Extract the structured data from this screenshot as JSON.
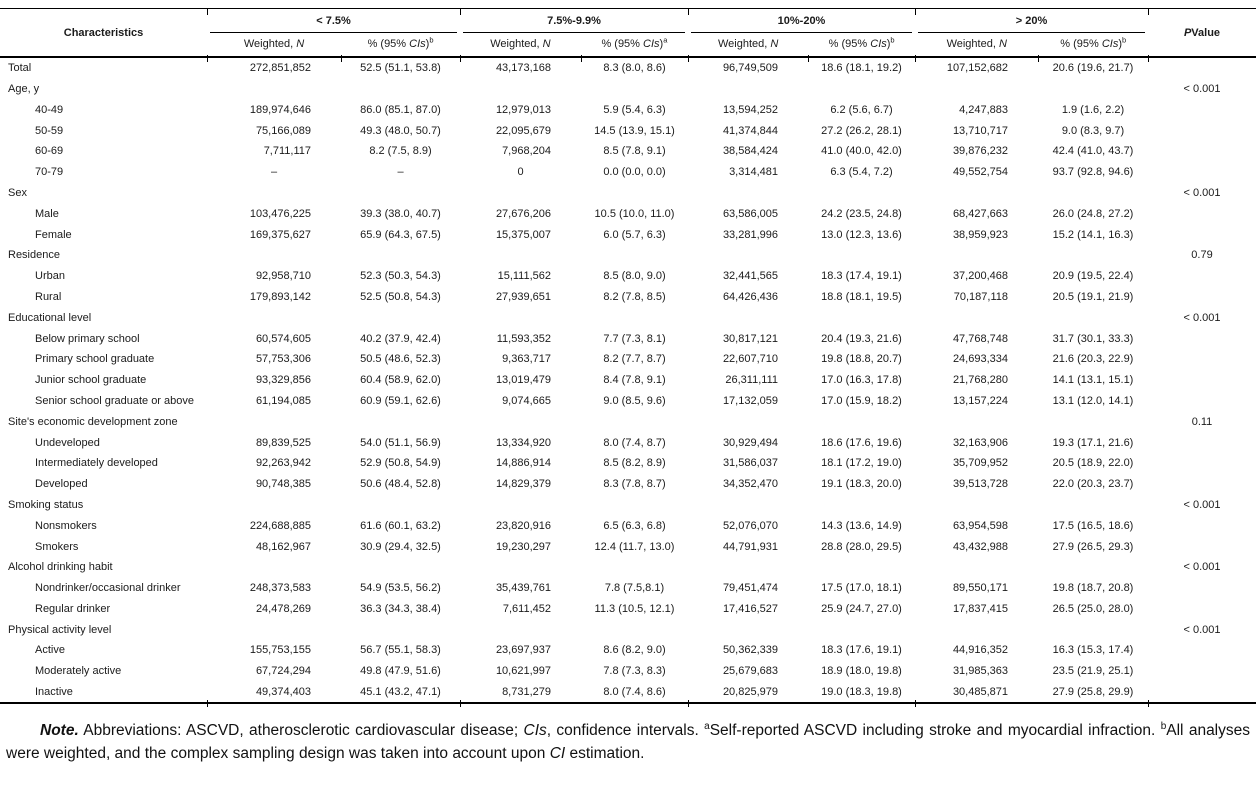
{
  "table": {
    "header": {
      "characteristics": "Characteristics",
      "p_italic": "P",
      "p_rest": " Value",
      "weighted_prefix": "Weighted, ",
      "weighted_n": "N",
      "pct_prefix": "% (95% ",
      "pct_cis": "CIs",
      "pct_close": ")",
      "groups": [
        {
          "range": "< 7.5%",
          "sup": "b"
        },
        {
          "range": "7.5%-9.9%",
          "sup": "a"
        },
        {
          "range": "10%-20%",
          "sup": "b"
        },
        {
          "range": "> 20%",
          "sup": "b"
        }
      ]
    },
    "rows": [
      {
        "label": "Total",
        "group": false,
        "indent": false,
        "cells": [
          "272,851,852",
          "52.5 (51.1, 53.8)",
          "43,173,168",
          "8.3 (8.0, 8.6)",
          "96,749,509",
          "18.6 (18.1, 19.2)",
          "107,152,682",
          "20.6 (19.6, 21.7)"
        ],
        "p": ""
      },
      {
        "label": "Age, y",
        "group": true,
        "indent": false,
        "cells": [],
        "p": "< 0.001"
      },
      {
        "label": "40-49",
        "group": false,
        "indent": true,
        "cells": [
          "189,974,646",
          "86.0 (85.1, 87.0)",
          "12,979,013",
          "5.9 (5.4, 6.3)",
          "13,594,252",
          "6.2 (5.6, 6.7)",
          "4,247,883",
          "1.9 (1.6, 2.2)"
        ],
        "p": ""
      },
      {
        "label": "50-59",
        "group": false,
        "indent": true,
        "cells": [
          "75,166,089",
          "49.3 (48.0, 50.7)",
          "22,095,679",
          "14.5 (13.9, 15.1)",
          "41,374,844",
          "27.2 (26.2, 28.1)",
          "13,710,717",
          "9.0 (8.3, 9.7)"
        ],
        "p": ""
      },
      {
        "label": "60-69",
        "group": false,
        "indent": true,
        "cells": [
          "7,711,117",
          "8.2 (7.5, 8.9)",
          "7,968,204",
          "8.5 (7.8, 9.1)",
          "38,584,424",
          "41.0 (40.0, 42.0)",
          "39,876,232",
          "42.4 (41.0, 43.7)"
        ],
        "p": ""
      },
      {
        "label": "70-79",
        "group": false,
        "indent": true,
        "cells": [
          "–",
          "–",
          "0",
          "0.0 (0.0, 0.0)",
          "3,314,481",
          "6.3 (5.4, 7.2)",
          "49,552,754",
          "93.7 (92.8, 94.6)"
        ],
        "p": ""
      },
      {
        "label": "Sex",
        "group": true,
        "indent": false,
        "cells": [],
        "p": "< 0.001"
      },
      {
        "label": "Male",
        "group": false,
        "indent": true,
        "cells": [
          "103,476,225",
          "39.3 (38.0, 40.7)",
          "27,676,206",
          "10.5 (10.0, 11.0)",
          "63,586,005",
          "24.2 (23.5, 24.8)",
          "68,427,663",
          "26.0 (24.8, 27.2)"
        ],
        "p": ""
      },
      {
        "label": "Female",
        "group": false,
        "indent": true,
        "cells": [
          "169,375,627",
          "65.9 (64.3, 67.5)",
          "15,375,007",
          "6.0 (5.7, 6.3)",
          "33,281,996",
          "13.0 (12.3, 13.6)",
          "38,959,923",
          "15.2 (14.1, 16.3)"
        ],
        "p": ""
      },
      {
        "label": "Residence",
        "group": true,
        "indent": false,
        "cells": [],
        "p": "0.79"
      },
      {
        "label": "Urban",
        "group": false,
        "indent": true,
        "cells": [
          "92,958,710",
          "52.3 (50.3, 54.3)",
          "15,111,562",
          "8.5 (8.0, 9.0)",
          "32,441,565",
          "18.3 (17.4, 19.1)",
          "37,200,468",
          "20.9 (19.5, 22.4)"
        ],
        "p": ""
      },
      {
        "label": "Rural",
        "group": false,
        "indent": true,
        "cells": [
          "179,893,142",
          "52.5 (50.8, 54.3)",
          "27,939,651",
          "8.2 (7.8, 8.5)",
          "64,426,436",
          "18.8 (18.1, 19.5)",
          "70,187,118",
          "20.5 (19.1, 21.9)"
        ],
        "p": ""
      },
      {
        "label": "Educational level",
        "group": true,
        "indent": false,
        "cells": [],
        "p": "< 0.001"
      },
      {
        "label": "Below primary school",
        "group": false,
        "indent": true,
        "cells": [
          "60,574,605",
          "40.2 (37.9, 42.4)",
          "11,593,352",
          "7.7 (7.3, 8.1)",
          "30,817,121",
          "20.4 (19.3, 21.6)",
          "47,768,748",
          "31.7 (30.1, 33.3)"
        ],
        "p": ""
      },
      {
        "label": "Primary school graduate",
        "group": false,
        "indent": true,
        "cells": [
          "57,753,306",
          "50.5 (48.6, 52.3)",
          "9,363,717",
          "8.2 (7.7, 8.7)",
          "22,607,710",
          "19.8 (18.8, 20.7)",
          "24,693,334",
          "21.6 (20.3, 22.9)"
        ],
        "p": ""
      },
      {
        "label": "Junior school graduate",
        "group": false,
        "indent": true,
        "cells": [
          "93,329,856",
          "60.4 (58.9, 62.0)",
          "13,019,479",
          "8.4 (7.8, 9.1)",
          "26,311,111",
          "17.0 (16.3, 17.8)",
          "21,768,280",
          "14.1 (13.1, 15.1)"
        ],
        "p": ""
      },
      {
        "label": "Senior school graduate or above",
        "group": false,
        "indent": true,
        "cells": [
          "61,194,085",
          "60.9 (59.1, 62.6)",
          "9,074,665",
          "9.0 (8.5, 9.6)",
          "17,132,059",
          "17.0 (15.9, 18.2)",
          "13,157,224",
          "13.1 (12.0, 14.1)"
        ],
        "p": ""
      },
      {
        "label": "Site's economic development zone",
        "group": true,
        "indent": false,
        "cells": [],
        "p": "0.11"
      },
      {
        "label": "Undeveloped",
        "group": false,
        "indent": true,
        "cells": [
          "89,839,525",
          "54.0 (51.1, 56.9)",
          "13,334,920",
          "8.0 (7.4, 8.7)",
          "30,929,494",
          "18.6 (17.6, 19.6)",
          "32,163,906",
          "19.3 (17.1, 21.6)"
        ],
        "p": ""
      },
      {
        "label": "Intermediately developed",
        "group": false,
        "indent": true,
        "cells": [
          "92,263,942",
          "52.9 (50.8, 54.9)",
          "14,886,914",
          "8.5 (8.2, 8.9)",
          "31,586,037",
          "18.1 (17.2, 19.0)",
          "35,709,952",
          "20.5 (18.9, 22.0)"
        ],
        "p": ""
      },
      {
        "label": "Developed",
        "group": false,
        "indent": true,
        "cells": [
          "90,748,385",
          "50.6 (48.4, 52.8)",
          "14,829,379",
          "8.3 (7.8, 8.7)",
          "34,352,470",
          "19.1 (18.3, 20.0)",
          "39,513,728",
          "22.0 (20.3, 23.7)"
        ],
        "p": ""
      },
      {
        "label": "Smoking status",
        "group": true,
        "indent": false,
        "cells": [],
        "p": "< 0.001"
      },
      {
        "label": "Nonsmokers",
        "group": false,
        "indent": true,
        "cells": [
          "224,688,885",
          "61.6 (60.1, 63.2)",
          "23,820,916",
          "6.5 (6.3, 6.8)",
          "52,076,070",
          "14.3 (13.6, 14.9)",
          "63,954,598",
          "17.5 (16.5, 18.6)"
        ],
        "p": ""
      },
      {
        "label": "Smokers",
        "group": false,
        "indent": true,
        "cells": [
          "48,162,967",
          "30.9 (29.4, 32.5)",
          "19,230,297",
          "12.4 (11.7, 13.0)",
          "44,791,931",
          "28.8 (28.0, 29.5)",
          "43,432,988",
          "27.9 (26.5, 29.3)"
        ],
        "p": ""
      },
      {
        "label": "Alcohol drinking habit",
        "group": true,
        "indent": false,
        "cells": [],
        "p": "< 0.001"
      },
      {
        "label": "Nondrinker/occasional drinker",
        "group": false,
        "indent": true,
        "cells": [
          "248,373,583",
          "54.9 (53.5, 56.2)",
          "35,439,761",
          "7.8 (7.5,8.1)",
          "79,451,474",
          "17.5 (17.0, 18.1)",
          "89,550,171",
          "19.8 (18.7, 20.8)"
        ],
        "p": ""
      },
      {
        "label": "Regular drinker",
        "group": false,
        "indent": true,
        "cells": [
          "24,478,269",
          "36.3 (34.3, 38.4)",
          "7,611,452",
          "11.3 (10.5, 12.1)",
          "17,416,527",
          "25.9 (24.7, 27.0)",
          "17,837,415",
          "26.5 (25.0, 28.0)"
        ],
        "p": ""
      },
      {
        "label": "Physical activity level",
        "group": true,
        "indent": false,
        "cells": [],
        "p": "< 0.001"
      },
      {
        "label": "Active",
        "group": false,
        "indent": true,
        "cells": [
          "155,753,155",
          "56.7 (55.1, 58.3)",
          "23,697,937",
          "8.6 (8.2, 9.0)",
          "50,362,339",
          "18.3 (17.6, 19.1)",
          "44,916,352",
          "16.3 (15.3, 17.4)"
        ],
        "p": ""
      },
      {
        "label": "Moderately active",
        "group": false,
        "indent": true,
        "cells": [
          "67,724,294",
          "49.8 (47.9, 51.6)",
          "10,621,997",
          "7.8 (7.3, 8.3)",
          "25,679,683",
          "18.9 (18.0, 19.8)",
          "31,985,363",
          "23.5 (21.9, 25.1)"
        ],
        "p": ""
      },
      {
        "label": "Inactive",
        "group": false,
        "indent": true,
        "cells": [
          "49,374,403",
          "45.1 (43.2, 47.1)",
          "8,731,279",
          "8.0 (7.4, 8.6)",
          "20,825,979",
          "19.0 (18.3, 19.8)",
          "30,485,871",
          "27.9 (25.8, 29.9)"
        ],
        "p": ""
      }
    ]
  },
  "note": {
    "label": "Note.",
    "part1": " Abbreviations: ASCVD, atherosclerotic cardiovascular disease; ",
    "cis_italic": "CIs",
    "part2": ", confidence intervals. ",
    "sup_a": "a",
    "part3": "Self-reported ASCVD including stroke and myocardial infraction. ",
    "sup_b": "b",
    "part4": "All analyses were weighted, and the complex sampling design was taken into account upon ",
    "ci_italic": "CI",
    "part5": " estimation."
  }
}
